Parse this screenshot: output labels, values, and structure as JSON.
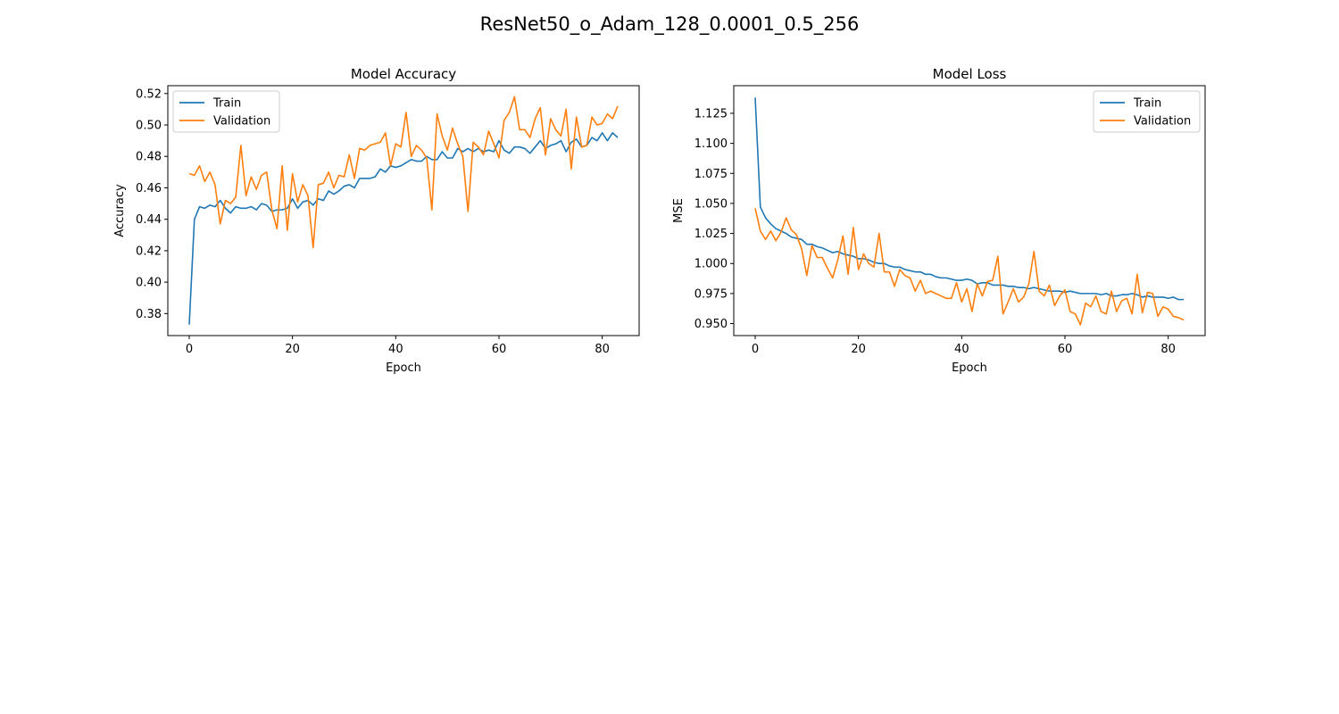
{
  "figure": {
    "title": "ResNet50_o_Adam_128_0.0001_0.5_256"
  },
  "chart_data": [
    {
      "type": "line",
      "title": "Model Accuracy",
      "xlabel": "Epoch",
      "ylabel": "Accuracy",
      "xlim": [
        -4.15,
        87.15
      ],
      "ylim": [
        0.366,
        0.525
      ],
      "xticks": [
        0,
        20,
        40,
        60,
        80
      ],
      "yticks": [
        0.38,
        0.4,
        0.42,
        0.44,
        0.46,
        0.48,
        0.5,
        0.52
      ],
      "ytick_labels": [
        "0.38",
        "0.40",
        "0.42",
        "0.44",
        "0.46",
        "0.48",
        "0.50",
        "0.52"
      ],
      "legend": "upper-left",
      "grid": false,
      "series": [
        {
          "name": "Train",
          "color": "#1f77b4",
          "values": [
            0.373,
            0.44,
            0.448,
            0.447,
            0.449,
            0.448,
            0.452,
            0.447,
            0.444,
            0.448,
            0.447,
            0.447,
            0.448,
            0.446,
            0.45,
            0.449,
            0.445,
            0.446,
            0.446,
            0.447,
            0.453,
            0.447,
            0.451,
            0.452,
            0.449,
            0.453,
            0.452,
            0.458,
            0.456,
            0.458,
            0.461,
            0.462,
            0.46,
            0.466,
            0.466,
            0.466,
            0.467,
            0.472,
            0.47,
            0.474,
            0.473,
            0.474,
            0.476,
            0.478,
            0.477,
            0.477,
            0.48,
            0.478,
            0.478,
            0.483,
            0.479,
            0.479,
            0.485,
            0.483,
            0.485,
            0.483,
            0.485,
            0.483,
            0.484,
            0.483,
            0.49,
            0.484,
            0.482,
            0.486,
            0.486,
            0.485,
            0.482,
            0.486,
            0.49,
            0.485,
            0.487,
            0.488,
            0.49,
            0.483,
            0.489,
            0.491,
            0.486,
            0.487,
            0.492,
            0.49,
            0.495,
            0.49,
            0.495,
            0.492
          ]
        },
        {
          "name": "Validation",
          "color": "#ff7f0e",
          "values": [
            0.469,
            0.468,
            0.474,
            0.464,
            0.47,
            0.462,
            0.437,
            0.452,
            0.45,
            0.454,
            0.487,
            0.455,
            0.467,
            0.459,
            0.468,
            0.47,
            0.446,
            0.434,
            0.474,
            0.433,
            0.469,
            0.451,
            0.462,
            0.455,
            0.422,
            0.462,
            0.463,
            0.47,
            0.46,
            0.468,
            0.467,
            0.481,
            0.466,
            0.485,
            0.484,
            0.487,
            0.488,
            0.489,
            0.495,
            0.474,
            0.488,
            0.486,
            0.508,
            0.48,
            0.487,
            0.484,
            0.479,
            0.446,
            0.507,
            0.493,
            0.484,
            0.498,
            0.488,
            0.48,
            0.445,
            0.489,
            0.486,
            0.481,
            0.496,
            0.488,
            0.479,
            0.503,
            0.508,
            0.518,
            0.497,
            0.497,
            0.492,
            0.504,
            0.511,
            0.481,
            0.504,
            0.497,
            0.493,
            0.51,
            0.472,
            0.505,
            0.486,
            0.487,
            0.505,
            0.5,
            0.501,
            0.507,
            0.504,
            0.512
          ]
        }
      ]
    },
    {
      "type": "line",
      "title": "Model Loss",
      "xlabel": "Epoch",
      "ylabel": "MSE",
      "xlim": [
        -4.15,
        87.15
      ],
      "ylim": [
        0.94,
        1.148
      ],
      "xticks": [
        0,
        20,
        40,
        60,
        80
      ],
      "yticks": [
        0.95,
        0.975,
        1.0,
        1.025,
        1.05,
        1.075,
        1.1,
        1.125
      ],
      "ytick_labels": [
        "0.950",
        "0.975",
        "1.000",
        "1.025",
        "1.050",
        "1.075",
        "1.100",
        "1.125"
      ],
      "legend": "upper-right",
      "grid": false,
      "series": [
        {
          "name": "Train",
          "color": "#1f77b4",
          "values": [
            1.138,
            1.047,
            1.038,
            1.033,
            1.029,
            1.027,
            1.025,
            1.022,
            1.021,
            1.02,
            1.016,
            1.016,
            1.014,
            1.013,
            1.011,
            1.009,
            1.01,
            1.008,
            1.007,
            1.006,
            1.004,
            1.004,
            1.003,
            1.001,
            1.0,
            1.0,
            0.998,
            0.997,
            0.997,
            0.995,
            0.994,
            0.993,
            0.993,
            0.991,
            0.991,
            0.989,
            0.988,
            0.988,
            0.987,
            0.986,
            0.986,
            0.987,
            0.986,
            0.983,
            0.984,
            0.984,
            0.982,
            0.982,
            0.982,
            0.981,
            0.981,
            0.98,
            0.98,
            0.979,
            0.98,
            0.979,
            0.978,
            0.977,
            0.977,
            0.977,
            0.976,
            0.977,
            0.976,
            0.975,
            0.975,
            0.975,
            0.975,
            0.974,
            0.975,
            0.973,
            0.973,
            0.974,
            0.974,
            0.975,
            0.974,
            0.972,
            0.973,
            0.972,
            0.972,
            0.972,
            0.971,
            0.972,
            0.97,
            0.97
          ]
        },
        {
          "name": "Validation",
          "color": "#ff7f0e",
          "values": [
            1.046,
            1.027,
            1.02,
            1.027,
            1.019,
            1.026,
            1.038,
            1.028,
            1.024,
            1.012,
            0.99,
            1.015,
            1.005,
            1.005,
            0.996,
            0.988,
            1.003,
            1.023,
            0.991,
            1.03,
            0.995,
            1.008,
            1.0,
            0.997,
            1.025,
            0.993,
            0.993,
            0.981,
            0.995,
            0.99,
            0.988,
            0.977,
            0.986,
            0.975,
            0.977,
            0.975,
            0.973,
            0.971,
            0.971,
            0.984,
            0.968,
            0.979,
            0.96,
            0.983,
            0.973,
            0.985,
            0.986,
            1.006,
            0.958,
            0.968,
            0.979,
            0.968,
            0.972,
            0.983,
            1.01,
            0.977,
            0.973,
            0.982,
            0.965,
            0.973,
            0.978,
            0.96,
            0.958,
            0.949,
            0.967,
            0.964,
            0.973,
            0.96,
            0.958,
            0.977,
            0.96,
            0.969,
            0.971,
            0.958,
            0.991,
            0.959,
            0.976,
            0.975,
            0.956,
            0.964,
            0.962,
            0.956,
            0.955,
            0.953
          ]
        }
      ]
    }
  ]
}
